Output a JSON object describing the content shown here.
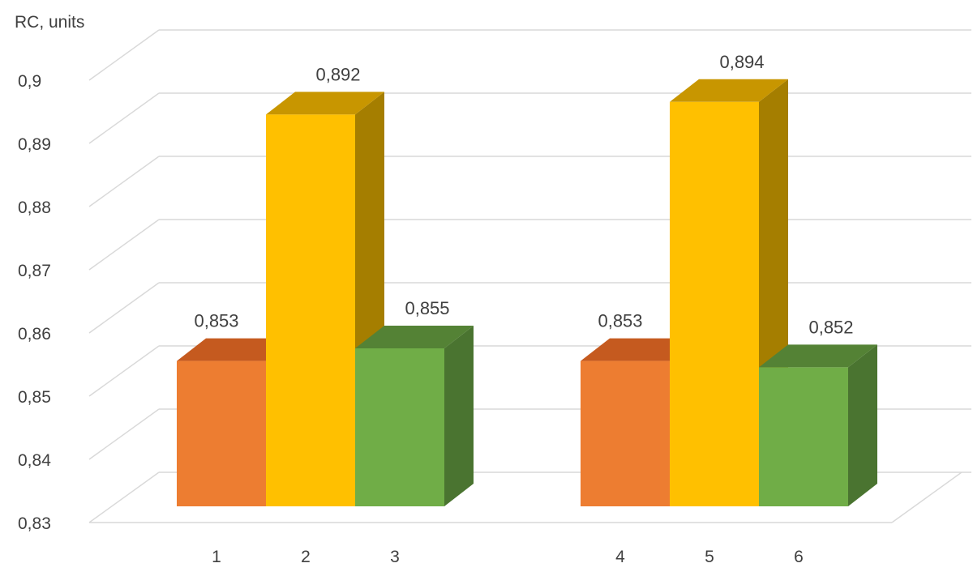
{
  "chart_data": {
    "type": "bar",
    "style": "3d-clustered-column",
    "ylabel": "RC, units",
    "xlabel": "",
    "ylim": [
      0.83,
      0.9
    ],
    "y_ticks": [
      "0,83",
      "0,84",
      "0,85",
      "0,86",
      "0,87",
      "0,88",
      "0,89",
      "0,9"
    ],
    "y_tick_values": [
      0.83,
      0.84,
      0.85,
      0.86,
      0.87,
      0.88,
      0.89,
      0.9
    ],
    "grid": true,
    "legend": "none",
    "bars": [
      {
        "category": "1",
        "value": 0.853,
        "label": "0,853",
        "color": "orange"
      },
      {
        "category": "2",
        "value": 0.892,
        "label": "0,892",
        "color": "yellow"
      },
      {
        "category": "3",
        "value": 0.855,
        "label": "0,855",
        "color": "green"
      },
      {
        "category": "4",
        "value": 0.853,
        "label": "0,853",
        "color": "orange"
      },
      {
        "category": "5",
        "value": 0.894,
        "label": "0,894",
        "color": "yellow"
      },
      {
        "category": "6",
        "value": 0.852,
        "label": "0,852",
        "color": "green"
      }
    ],
    "groups": [
      [
        "1",
        "2",
        "3"
      ],
      [
        "4",
        "5",
        "6"
      ]
    ],
    "colors": {
      "orange": {
        "front": "#ED7D31",
        "top": "#C55A1F",
        "side": "#B3541E"
      },
      "yellow": {
        "front": "#FFC000",
        "top": "#C89600",
        "side": "#A57E00"
      },
      "green": {
        "front": "#70AD47",
        "top": "#548235",
        "side": "#4A7430"
      },
      "grid": "#D9D9D9",
      "text": "#404040"
    }
  }
}
